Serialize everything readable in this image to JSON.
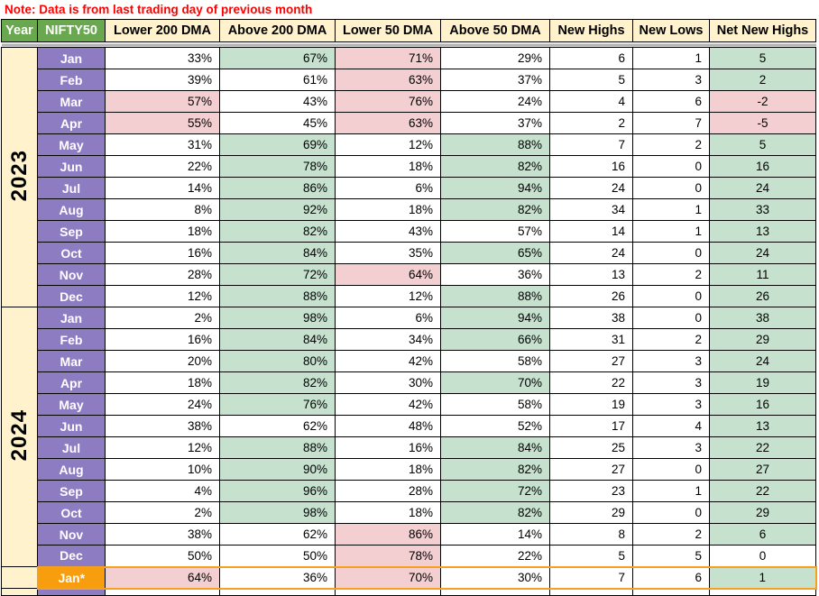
{
  "note": "Note: Data is from last trading day of previous month",
  "columns": [
    "Year",
    "NIFTY50",
    "Lower 200 DMA",
    "Above 200 DMA",
    "Lower 50 DMA",
    "Above 50 DMA",
    "New Highs",
    "New Lows",
    "Net New Highs"
  ],
  "colors": {
    "note_red": "#ff0000",
    "header_green": "#6aa84f",
    "header_cream": "#fff2cc",
    "month_purple": "#8e7cc3",
    "cell_green": "#c6e2ce",
    "cell_pink": "#f4cfd1",
    "highlight_orange_fill": "#f89d0e",
    "highlight_orange_border": "#f6a01f",
    "grid_black": "#000000"
  },
  "legend_note": "cell bg codes: w=white, g=green, p=pink",
  "groups": [
    {
      "year": "2023",
      "rows": [
        {
          "month": "Jan",
          "l200": [
            "33%",
            "w"
          ],
          "a200": [
            "67%",
            "g"
          ],
          "l50": [
            "71%",
            "p"
          ],
          "a50": [
            "29%",
            "w"
          ],
          "nh": "6",
          "nl": "1",
          "nnh": [
            "5",
            "g"
          ]
        },
        {
          "month": "Feb",
          "l200": [
            "39%",
            "w"
          ],
          "a200": [
            "61%",
            "w"
          ],
          "l50": [
            "63%",
            "p"
          ],
          "a50": [
            "37%",
            "w"
          ],
          "nh": "5",
          "nl": "3",
          "nnh": [
            "2",
            "g"
          ]
        },
        {
          "month": "Mar",
          "l200": [
            "57%",
            "p"
          ],
          "a200": [
            "43%",
            "w"
          ],
          "l50": [
            "76%",
            "p"
          ],
          "a50": [
            "24%",
            "w"
          ],
          "nh": "4",
          "nl": "6",
          "nnh": [
            "-2",
            "p"
          ]
        },
        {
          "month": "Apr",
          "l200": [
            "55%",
            "p"
          ],
          "a200": [
            "45%",
            "w"
          ],
          "l50": [
            "63%",
            "p"
          ],
          "a50": [
            "37%",
            "w"
          ],
          "nh": "2",
          "nl": "7",
          "nnh": [
            "-5",
            "p"
          ]
        },
        {
          "month": "May",
          "l200": [
            "31%",
            "w"
          ],
          "a200": [
            "69%",
            "g"
          ],
          "l50": [
            "12%",
            "w"
          ],
          "a50": [
            "88%",
            "g"
          ],
          "nh": "7",
          "nl": "2",
          "nnh": [
            "5",
            "g"
          ]
        },
        {
          "month": "Jun",
          "l200": [
            "22%",
            "w"
          ],
          "a200": [
            "78%",
            "g"
          ],
          "l50": [
            "18%",
            "w"
          ],
          "a50": [
            "82%",
            "g"
          ],
          "nh": "16",
          "nl": "0",
          "nnh": [
            "16",
            "g"
          ]
        },
        {
          "month": "Jul",
          "l200": [
            "14%",
            "w"
          ],
          "a200": [
            "86%",
            "g"
          ],
          "l50": [
            "6%",
            "w"
          ],
          "a50": [
            "94%",
            "g"
          ],
          "nh": "24",
          "nl": "0",
          "nnh": [
            "24",
            "g"
          ]
        },
        {
          "month": "Aug",
          "l200": [
            "8%",
            "w"
          ],
          "a200": [
            "92%",
            "g"
          ],
          "l50": [
            "18%",
            "w"
          ],
          "a50": [
            "82%",
            "g"
          ],
          "nh": "34",
          "nl": "1",
          "nnh": [
            "33",
            "g"
          ]
        },
        {
          "month": "Sep",
          "l200": [
            "18%",
            "w"
          ],
          "a200": [
            "82%",
            "g"
          ],
          "l50": [
            "43%",
            "w"
          ],
          "a50": [
            "57%",
            "w"
          ],
          "nh": "14",
          "nl": "1",
          "nnh": [
            "13",
            "g"
          ]
        },
        {
          "month": "Oct",
          "l200": [
            "16%",
            "w"
          ],
          "a200": [
            "84%",
            "g"
          ],
          "l50": [
            "35%",
            "w"
          ],
          "a50": [
            "65%",
            "g"
          ],
          "nh": "24",
          "nl": "0",
          "nnh": [
            "24",
            "g"
          ]
        },
        {
          "month": "Nov",
          "l200": [
            "28%",
            "w"
          ],
          "a200": [
            "72%",
            "g"
          ],
          "l50": [
            "64%",
            "p"
          ],
          "a50": [
            "36%",
            "w"
          ],
          "nh": "13",
          "nl": "2",
          "nnh": [
            "11",
            "g"
          ]
        },
        {
          "month": "Dec",
          "l200": [
            "12%",
            "w"
          ],
          "a200": [
            "88%",
            "g"
          ],
          "l50": [
            "12%",
            "w"
          ],
          "a50": [
            "88%",
            "g"
          ],
          "nh": "26",
          "nl": "0",
          "nnh": [
            "26",
            "g"
          ]
        }
      ]
    },
    {
      "year": "2024",
      "rows": [
        {
          "month": "Jan",
          "l200": [
            "2%",
            "w"
          ],
          "a200": [
            "98%",
            "g"
          ],
          "l50": [
            "6%",
            "w"
          ],
          "a50": [
            "94%",
            "g"
          ],
          "nh": "38",
          "nl": "0",
          "nnh": [
            "38",
            "g"
          ]
        },
        {
          "month": "Feb",
          "l200": [
            "16%",
            "w"
          ],
          "a200": [
            "84%",
            "g"
          ],
          "l50": [
            "34%",
            "w"
          ],
          "a50": [
            "66%",
            "g"
          ],
          "nh": "31",
          "nl": "2",
          "nnh": [
            "29",
            "g"
          ]
        },
        {
          "month": "Mar",
          "l200": [
            "20%",
            "w"
          ],
          "a200": [
            "80%",
            "g"
          ],
          "l50": [
            "42%",
            "w"
          ],
          "a50": [
            "58%",
            "w"
          ],
          "nh": "27",
          "nl": "3",
          "nnh": [
            "24",
            "g"
          ]
        },
        {
          "month": "Apr",
          "l200": [
            "18%",
            "w"
          ],
          "a200": [
            "82%",
            "g"
          ],
          "l50": [
            "30%",
            "w"
          ],
          "a50": [
            "70%",
            "g"
          ],
          "nh": "22",
          "nl": "3",
          "nnh": [
            "19",
            "g"
          ]
        },
        {
          "month": "May",
          "l200": [
            "24%",
            "w"
          ],
          "a200": [
            "76%",
            "g"
          ],
          "l50": [
            "42%",
            "w"
          ],
          "a50": [
            "58%",
            "w"
          ],
          "nh": "19",
          "nl": "3",
          "nnh": [
            "16",
            "g"
          ]
        },
        {
          "month": "Jun",
          "l200": [
            "38%",
            "w"
          ],
          "a200": [
            "62%",
            "w"
          ],
          "l50": [
            "48%",
            "w"
          ],
          "a50": [
            "52%",
            "w"
          ],
          "nh": "17",
          "nl": "4",
          "nnh": [
            "13",
            "g"
          ]
        },
        {
          "month": "Jul",
          "l200": [
            "12%",
            "w"
          ],
          "a200": [
            "88%",
            "g"
          ],
          "l50": [
            "16%",
            "w"
          ],
          "a50": [
            "84%",
            "g"
          ],
          "nh": "25",
          "nl": "3",
          "nnh": [
            "22",
            "g"
          ]
        },
        {
          "month": "Aug",
          "l200": [
            "10%",
            "w"
          ],
          "a200": [
            "90%",
            "g"
          ],
          "l50": [
            "18%",
            "w"
          ],
          "a50": [
            "82%",
            "g"
          ],
          "nh": "27",
          "nl": "0",
          "nnh": [
            "27",
            "g"
          ]
        },
        {
          "month": "Sep",
          "l200": [
            "4%",
            "w"
          ],
          "a200": [
            "96%",
            "g"
          ],
          "l50": [
            "28%",
            "w"
          ],
          "a50": [
            "72%",
            "g"
          ],
          "nh": "23",
          "nl": "1",
          "nnh": [
            "22",
            "g"
          ]
        },
        {
          "month": "Oct",
          "l200": [
            "2%",
            "w"
          ],
          "a200": [
            "98%",
            "g"
          ],
          "l50": [
            "18%",
            "w"
          ],
          "a50": [
            "82%",
            "g"
          ],
          "nh": "29",
          "nl": "0",
          "nnh": [
            "29",
            "g"
          ]
        },
        {
          "month": "Nov",
          "l200": [
            "38%",
            "w"
          ],
          "a200": [
            "62%",
            "w"
          ],
          "l50": [
            "86%",
            "p"
          ],
          "a50": [
            "14%",
            "w"
          ],
          "nh": "8",
          "nl": "2",
          "nnh": [
            "6",
            "g"
          ]
        },
        {
          "month": "Dec",
          "l200": [
            "50%",
            "w"
          ],
          "a200": [
            "50%",
            "w"
          ],
          "l50": [
            "78%",
            "p"
          ],
          "a50": [
            "22%",
            "w"
          ],
          "nh": "5",
          "nl": "5",
          "nnh": [
            "0",
            "w"
          ]
        }
      ]
    },
    {
      "year": "",
      "highlight": true,
      "rows": [
        {
          "month": "Jan*",
          "l200": [
            "64%",
            "p"
          ],
          "a200": [
            "36%",
            "w"
          ],
          "l50": [
            "70%",
            "p"
          ],
          "a50": [
            "30%",
            "w"
          ],
          "nh": "7",
          "nl": "6",
          "nnh": [
            "1",
            "g"
          ]
        }
      ]
    }
  ]
}
